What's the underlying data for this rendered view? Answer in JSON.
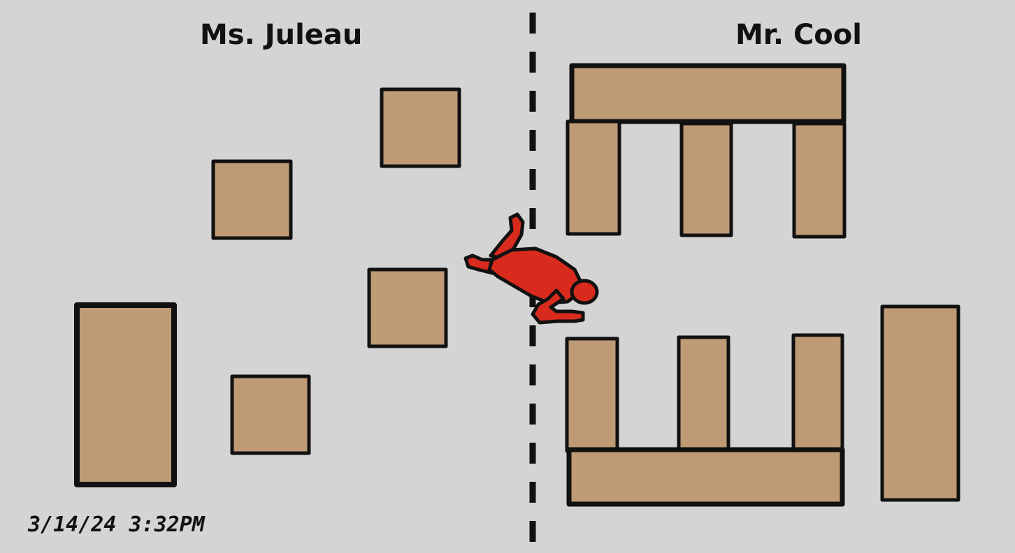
{
  "rooms": {
    "left": {
      "teacher": "Ms. Juleau"
    },
    "right": {
      "teacher": "Mr. Cool"
    }
  },
  "timestamp": "3/14/24 3:32PM",
  "colors": {
    "background": "#d4d4d4",
    "desk_fill": "#be9a75",
    "outline": "#111111",
    "body_outline": "#d82b1e",
    "divider": "#111111"
  },
  "icons": {
    "figure": "chalk-body-outline-icon"
  }
}
